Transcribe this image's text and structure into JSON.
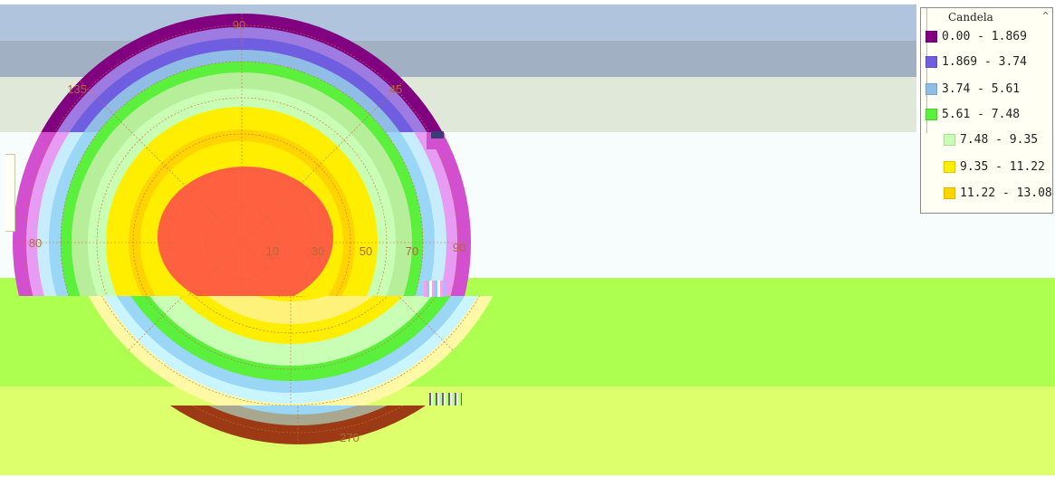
{
  "plot": {
    "angle_labels": [
      "90",
      "135",
      "45",
      "80",
      "90",
      "270"
    ],
    "ring_labels": [
      "10",
      "30",
      "50",
      "70"
    ]
  },
  "legend": {
    "title": "Candela",
    "entries": [
      {
        "range": "0.00 - 1.869",
        "color": "#800080"
      },
      {
        "range": "1.869 - 3.74",
        "color": "#6f5ee0"
      },
      {
        "range": "3.74 - 5.61",
        "color": "#8fbde6"
      },
      {
        "range": "5.61 - 7.48",
        "color": "#5af03c"
      },
      {
        "range": "7.48 - 9.35",
        "color": "#c8ffb4"
      },
      {
        "range": "9.35 - 11.22",
        "color": "#ffee00"
      },
      {
        "range": "11.22 - 13.08",
        "color": "#ffd400"
      }
    ]
  },
  "colors": {
    "band_top": "#b0c4de",
    "band_mid": "#a1b0c3",
    "band_pale": "#dfe8d9",
    "band_white": "#f7fdfd",
    "band_lime": "#adff50",
    "band_olive": "#ddff6c",
    "core": "#ff6040",
    "brown": "#9b3a14"
  }
}
